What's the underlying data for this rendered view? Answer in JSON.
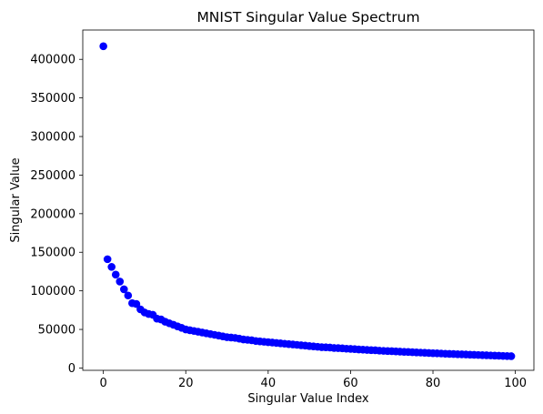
{
  "chart_data": {
    "type": "scatter",
    "title": "MNIST Singular Value Spectrum",
    "xlabel": "Singular Value Index",
    "ylabel": "Singular Value",
    "xlim": [
      -5,
      104.5
    ],
    "ylim": [
      -3000,
      438000
    ],
    "xticks": [
      0,
      20,
      40,
      60,
      80,
      100
    ],
    "yticks": [
      0,
      50000,
      100000,
      150000,
      200000,
      250000,
      300000,
      350000,
      400000
    ],
    "grid": false,
    "legend": "none",
    "marker_color": "#0000ff",
    "series": [
      {
        "x": [
          0,
          1,
          2,
          3,
          4,
          5,
          6,
          7,
          8,
          9,
          10,
          11,
          12,
          13,
          14,
          15,
          16,
          17,
          18,
          19,
          20,
          21,
          22,
          23,
          24,
          25,
          26,
          27,
          28,
          29,
          30,
          31,
          32,
          33,
          34,
          35,
          36,
          37,
          38,
          39,
          40,
          41,
          42,
          43,
          44,
          45,
          46,
          47,
          48,
          49,
          50,
          51,
          52,
          53,
          54,
          55,
          56,
          57,
          58,
          59,
          60,
          61,
          62,
          63,
          64,
          65,
          66,
          67,
          68,
          69,
          70,
          71,
          72,
          73,
          74,
          75,
          76,
          77,
          78,
          79,
          80,
          81,
          82,
          83,
          84,
          85,
          86,
          87,
          88,
          89,
          90,
          91,
          92,
          93,
          94,
          95,
          96,
          97,
          98,
          99
        ],
        "y": [
          417000,
          141000,
          131000,
          121000,
          112000,
          102000,
          94000,
          84000,
          83000,
          76000,
          72000,
          70000,
          69000,
          64000,
          63000,
          60000,
          58000,
          56000,
          54000,
          52000,
          50000,
          49000,
          48000,
          47000,
          46000,
          45000,
          44000,
          43000,
          42000,
          41000,
          40000,
          39500,
          39000,
          38000,
          37000,
          36500,
          36000,
          35000,
          34500,
          34000,
          33500,
          33000,
          32500,
          32000,
          31500,
          31000,
          30500,
          30000,
          29500,
          29000,
          28500,
          28000,
          27500,
          27000,
          26800,
          26500,
          26000,
          25800,
          25500,
          25000,
          24800,
          24500,
          24000,
          23800,
          23500,
          23200,
          23000,
          22500,
          22200,
          22000,
          21800,
          21500,
          21200,
          21000,
          20800,
          20500,
          20200,
          20000,
          19800,
          19500,
          19200,
          19000,
          18800,
          18500,
          18300,
          18100,
          17900,
          17700,
          17500,
          17300,
          17100,
          16900,
          16700,
          16500,
          16300,
          16100,
          15900,
          15700,
          15500,
          15300
        ]
      }
    ]
  }
}
